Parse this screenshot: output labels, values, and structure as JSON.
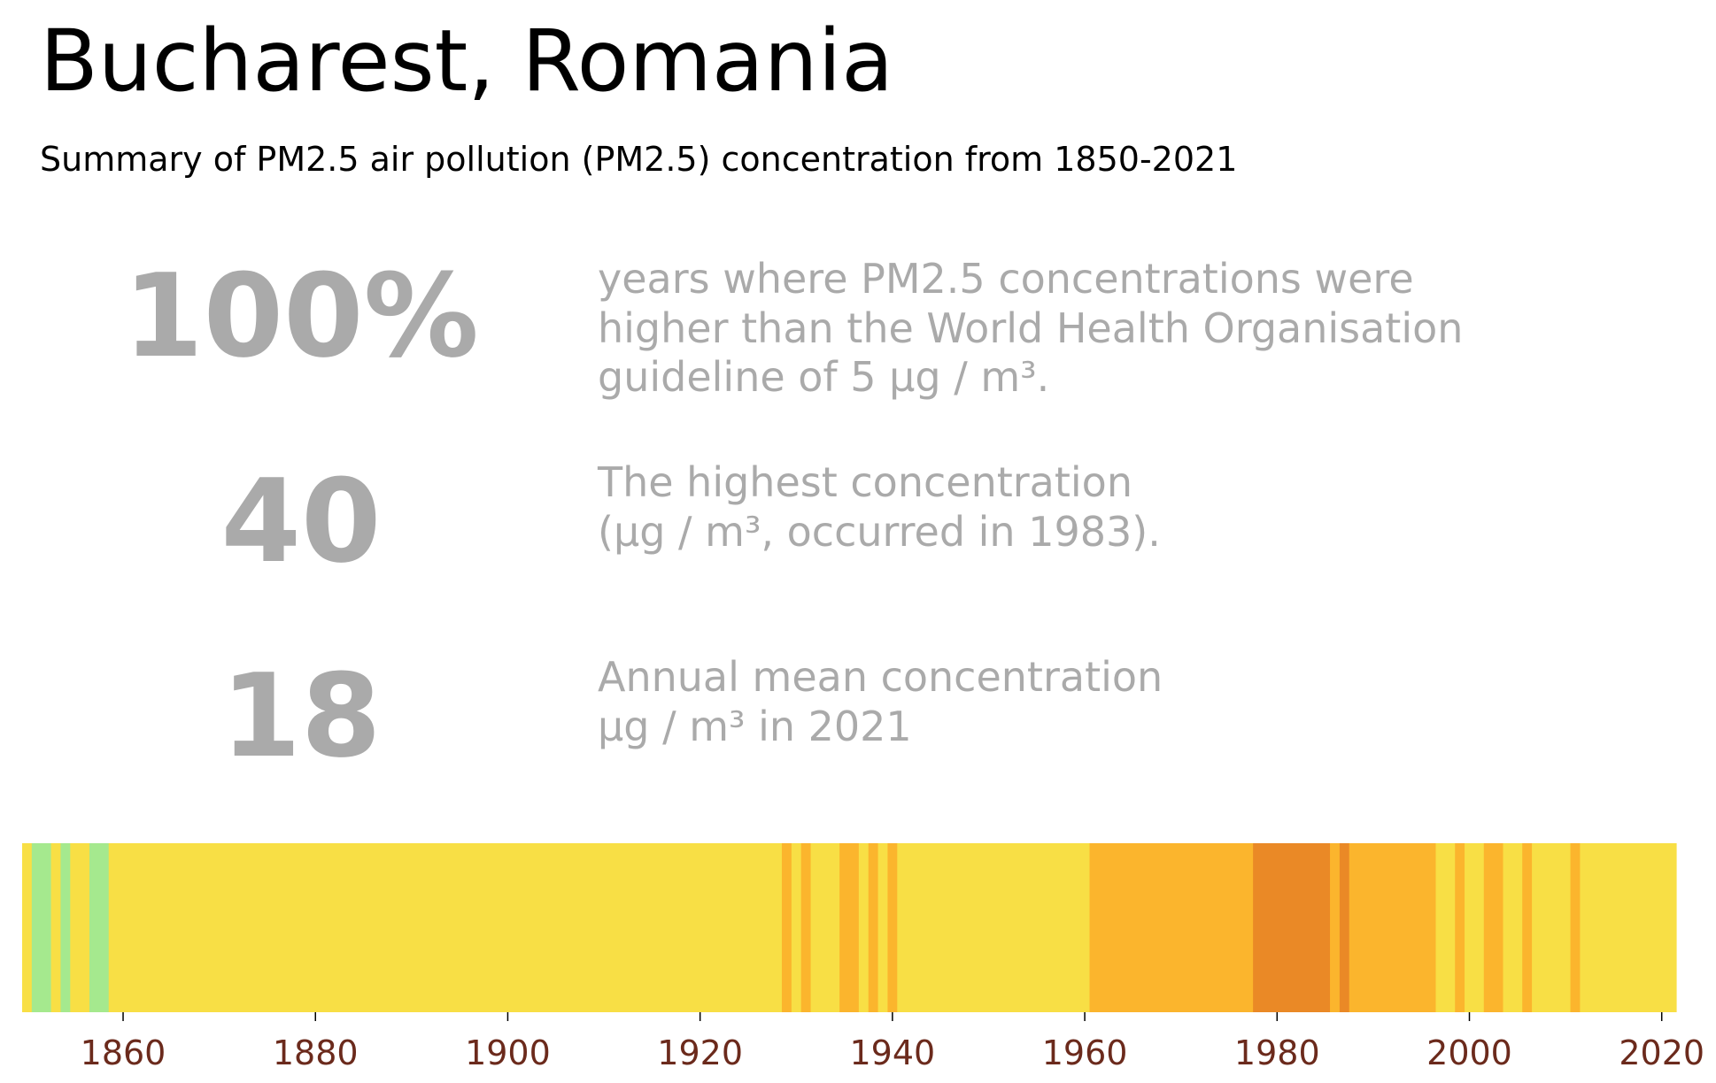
{
  "header": {
    "title": "Bucharest, Romania",
    "subtitle": "Summary of PM2.5 air pollution (PM2.5) concentration from 1850-2021"
  },
  "stats": [
    {
      "value": "100%",
      "description": "years where PM2.5 concentrations were\nhigher than the World Health Organisation\nguideline of 5 µg / m³."
    },
    {
      "value": "40",
      "description": "The highest concentration\n(µg / m³, occurred in 1983)."
    },
    {
      "value": "18",
      "description": "Annual mean concentration\nµg / m³ in 2021"
    }
  ],
  "chart_data": {
    "type": "heatmap",
    "x_start": 1850,
    "x_end": 2021,
    "xlim": [
      1849.5,
      2021.5
    ],
    "xticks": [
      1860,
      1880,
      1900,
      1920,
      1940,
      1960,
      1980,
      2000,
      2020
    ],
    "colors": {
      "green": "#a5e98e",
      "yellow": "#f8df45",
      "amber": "#fbb52d",
      "orange": "#ea8926",
      "tick_label": "#6b2a1c"
    },
    "bands": [
      {
        "start": 1850,
        "end": 1850,
        "color": "yellow"
      },
      {
        "start": 1851,
        "end": 1852,
        "color": "green"
      },
      {
        "start": 1853,
        "end": 1853,
        "color": "yellow"
      },
      {
        "start": 1854,
        "end": 1854,
        "color": "green"
      },
      {
        "start": 1855,
        "end": 1856,
        "color": "yellow"
      },
      {
        "start": 1857,
        "end": 1858,
        "color": "green"
      },
      {
        "start": 1859,
        "end": 1928,
        "color": "yellow"
      },
      {
        "start": 1929,
        "end": 1929,
        "color": "amber"
      },
      {
        "start": 1930,
        "end": 1930,
        "color": "yellow"
      },
      {
        "start": 1931,
        "end": 1931,
        "color": "amber"
      },
      {
        "start": 1932,
        "end": 1934,
        "color": "yellow"
      },
      {
        "start": 1935,
        "end": 1936,
        "color": "amber"
      },
      {
        "start": 1937,
        "end": 1937,
        "color": "yellow"
      },
      {
        "start": 1938,
        "end": 1938,
        "color": "amber"
      },
      {
        "start": 1939,
        "end": 1939,
        "color": "yellow"
      },
      {
        "start": 1940,
        "end": 1940,
        "color": "amber"
      },
      {
        "start": 1941,
        "end": 1960,
        "color": "yellow"
      },
      {
        "start": 1961,
        "end": 1977,
        "color": "amber"
      },
      {
        "start": 1978,
        "end": 1985,
        "color": "orange"
      },
      {
        "start": 1986,
        "end": 1986,
        "color": "amber"
      },
      {
        "start": 1987,
        "end": 1987,
        "color": "orange"
      },
      {
        "start": 1988,
        "end": 1996,
        "color": "amber"
      },
      {
        "start": 1997,
        "end": 1998,
        "color": "yellow"
      },
      {
        "start": 1999,
        "end": 1999,
        "color": "amber"
      },
      {
        "start": 2000,
        "end": 2001,
        "color": "yellow"
      },
      {
        "start": 2002,
        "end": 2003,
        "color": "amber"
      },
      {
        "start": 2004,
        "end": 2005,
        "color": "yellow"
      },
      {
        "start": 2006,
        "end": 2006,
        "color": "amber"
      },
      {
        "start": 2007,
        "end": 2010,
        "color": "yellow"
      },
      {
        "start": 2011,
        "end": 2011,
        "color": "amber"
      },
      {
        "start": 2012,
        "end": 2021,
        "color": "yellow"
      }
    ]
  }
}
